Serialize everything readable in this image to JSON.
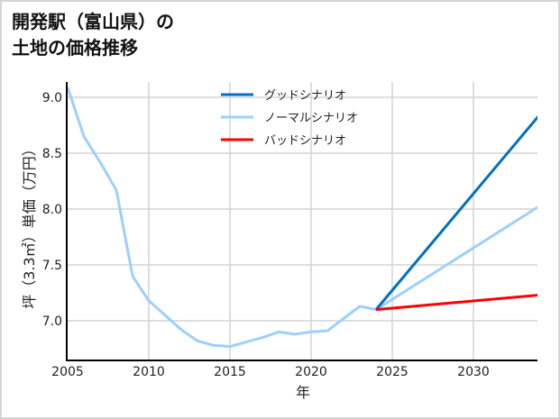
{
  "title": {
    "line1": "開発駅（富山県）の",
    "line2": "土地の価格推移"
  },
  "chart_data": {
    "type": "line",
    "title": "開発駅（富山県）の土地の価格推移",
    "xlabel": "年",
    "ylabel": "坪（3.3㎡）単価（万円）",
    "xlim": [
      2005,
      2034
    ],
    "ylim": [
      6.65,
      9.15
    ],
    "xticks": [
      2005,
      2010,
      2015,
      2020,
      2025,
      2030
    ],
    "yticks": [
      7.0,
      7.5,
      8.0,
      8.5,
      9.0
    ],
    "ytick_labels": [
      "7.0",
      "7.5",
      "8.0",
      "8.5",
      "9.0"
    ],
    "grid": true,
    "legend_position": "upper center",
    "series": [
      {
        "name": "グッドシナリオ",
        "color": "#0070c0",
        "x": [
          2024,
          2034
        ],
        "values": [
          7.1,
          8.83
        ]
      },
      {
        "name": "ノーマルシナリオ",
        "color": "#9dcfff",
        "x": [
          2005,
          2006,
          2007,
          2008,
          2009,
          2010,
          2011,
          2012,
          2013,
          2014,
          2015,
          2016,
          2017,
          2018,
          2019,
          2020,
          2021,
          2022,
          2023,
          2024,
          2034
        ],
        "values": [
          9.09,
          8.65,
          8.42,
          8.17,
          7.4,
          7.18,
          7.05,
          6.92,
          6.82,
          6.78,
          6.77,
          6.81,
          6.85,
          6.9,
          6.88,
          6.9,
          6.91,
          7.02,
          7.13,
          7.1,
          8.02
        ]
      },
      {
        "name": "バッドシナリオ",
        "color": "#ff0000",
        "x": [
          2024,
          2034
        ],
        "values": [
          7.1,
          7.23
        ]
      }
    ]
  }
}
